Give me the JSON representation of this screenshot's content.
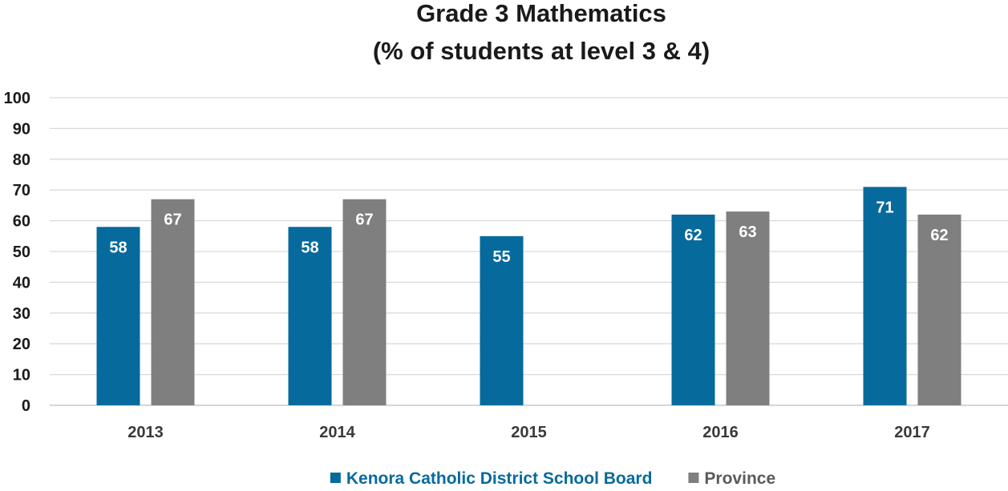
{
  "chart_data": {
    "type": "bar",
    "title": [
      "Grade 3 Mathematics",
      "(% of students at level 3 & 4)"
    ],
    "categories": [
      "2013",
      "2014",
      "2015",
      "2016",
      "2017"
    ],
    "series": [
      {
        "name": "Kenora Catholic District School Board",
        "color": "#066a9c",
        "values": [
          58,
          58,
          55,
          62,
          71
        ]
      },
      {
        "name": "Province",
        "color": "#7f7f7f",
        "values": [
          67,
          67,
          null,
          63,
          62
        ]
      }
    ],
    "ylim": [
      0,
      100
    ],
    "yticks": [
      0,
      10,
      20,
      30,
      40,
      50,
      60,
      70,
      80,
      90,
      100
    ],
    "grid": true,
    "legend_position": "bottom",
    "data_labels": true
  }
}
